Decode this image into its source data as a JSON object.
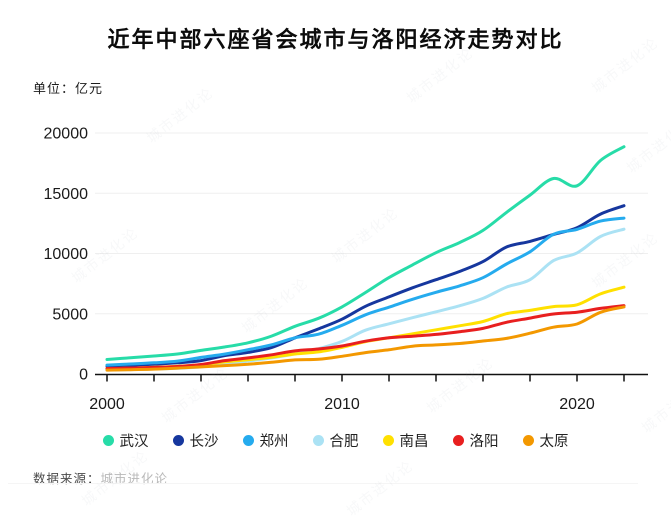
{
  "header": {
    "title": "近年中部六座省会城市与洛阳经济走势对比",
    "unit_label": "单位：亿元"
  },
  "chart_data": {
    "type": "line",
    "title": "近年中部六座省会城市与洛阳经济走势对比",
    "unit": "亿元",
    "x": [
      2000,
      2001,
      2002,
      2003,
      2004,
      2005,
      2006,
      2007,
      2008,
      2009,
      2010,
      2011,
      2012,
      2013,
      2014,
      2015,
      2016,
      2017,
      2018,
      2019,
      2020,
      2021,
      2022
    ],
    "x_axis": {
      "tick_step_years": 2,
      "labeled_ticks": [
        2000,
        2010,
        2020
      ]
    },
    "y_axis": {
      "ticks": [
        0,
        5000,
        10000,
        15000,
        20000
      ],
      "range": [
        0,
        20000
      ]
    },
    "grid": "horizontal-faint",
    "legend_position": "bottom",
    "series": [
      {
        "id": "wuhan",
        "name": "武汉",
        "color": "#27DCA8",
        "values": [
          1207,
          1348,
          1493,
          1662,
          1956,
          2238,
          2591,
          3142,
          3960,
          4621,
          5566,
          6762,
          8004,
          9051,
          10069,
          10906,
          11913,
          13410,
          14847,
          16223,
          15616,
          17717,
          18866
        ]
      },
      {
        "id": "changsha",
        "name": "长沙",
        "color": "#16379E",
        "values": [
          657,
          728,
          813,
          929,
          1109,
          1520,
          1791,
          2190,
          3001,
          3745,
          4547,
          5619,
          6400,
          7153,
          7825,
          8510,
          9324,
          10536,
          11003,
          11574,
          12143,
          13271,
          13966
        ]
      },
      {
        "id": "zhengzhou",
        "name": "郑州",
        "color": "#25ABEE",
        "values": [
          738,
          828,
          928,
          1074,
          1378,
          1650,
          2014,
          2421,
          3004,
          3300,
          4041,
          4913,
          5547,
          6202,
          6783,
          7315,
          7994,
          9130,
          10143,
          11590,
          12003,
          12691,
          12935
        ]
      },
      {
        "id": "hefei",
        "name": "合肥",
        "color": "#ABE2F4",
        "values": [
          325,
          364,
          413,
          478,
          589,
          853,
          1074,
          1334,
          1665,
          2102,
          2702,
          3637,
          4164,
          4673,
          5158,
          5660,
          6274,
          7213,
          7822,
          9409,
          10046,
          11413,
          12013
        ]
      },
      {
        "id": "nanchang",
        "name": "南昌",
        "color": "#FFE000",
        "values": [
          428,
          485,
          552,
          640,
          770,
          1008,
          1185,
          1390,
          1660,
          1838,
          2207,
          2689,
          3001,
          3336,
          3668,
          4000,
          4355,
          5003,
          5275,
          5596,
          5746,
          6651,
          7204
        ]
      },
      {
        "id": "luoyang",
        "name": "洛阳",
        "color": "#E81F1F",
        "values": [
          460,
          497,
          545,
          624,
          786,
          1112,
          1332,
          1596,
          1920,
          2075,
          2321,
          2723,
          3001,
          3141,
          3285,
          3509,
          3783,
          4290,
          4640,
          4982,
          5128,
          5447,
          5675
        ]
      },
      {
        "id": "taiyuan",
        "name": "太原",
        "color": "#F39800",
        "values": [
          324,
          360,
          405,
          487,
          589,
          693,
          809,
          969,
          1168,
          1220,
          1468,
          1775,
          2011,
          2311,
          2413,
          2531,
          2735,
          2955,
          3382,
          3884,
          4153,
          5121,
          5571
        ]
      }
    ]
  },
  "source": {
    "prefix": "数据来源：",
    "name": "城市进化论"
  },
  "watermark": {
    "text": "城市进化论"
  }
}
